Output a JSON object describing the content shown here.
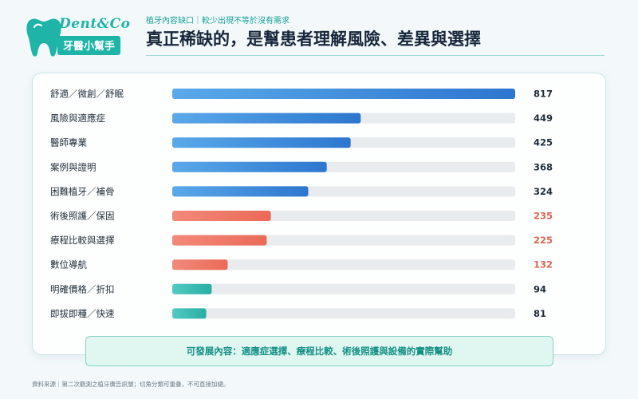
{
  "logo": {
    "brand": "Dent&Co",
    "subtitle": "牙醫小幫手"
  },
  "header": {
    "eyebrow": "植牙內容缺口｜較少出現不等於沒有需求",
    "title": "真正稀缺的，是幫患者理解風險、差異與選擇"
  },
  "chart_data": {
    "type": "bar",
    "orientation": "horizontal",
    "title": "",
    "xlabel": "",
    "ylabel": "",
    "xlim": [
      0,
      817
    ],
    "grid": false,
    "legend": "none",
    "categories": [
      "舒適／微創／舒眠",
      "風險與適應症",
      "醫師專業",
      "案例與證明",
      "困難植牙／補骨",
      "術後照護／保固",
      "療程比較與選擇",
      "數位導航",
      "明確價格／折扣",
      "即拔即種／快速"
    ],
    "values": [
      817,
      449,
      425,
      368,
      324,
      235,
      225,
      132,
      94,
      81
    ],
    "value_labels": [
      "817",
      "449",
      "425",
      "368",
      "324",
      "235",
      "225",
      "132",
      "94",
      "81"
    ],
    "bar_colors": [
      "#3a84d6",
      "#3a84d6",
      "#3a84d6",
      "#3a84d6",
      "#3a84d6",
      "#ee7564",
      "#ee7564",
      "#ee7564",
      "#32b9b0",
      "#32b9b0"
    ],
    "value_label_colors": [
      "#1f2d3a",
      "#1f2d3a",
      "#1f2d3a",
      "#1f2d3a",
      "#1f2d3a",
      "#e06551",
      "#e06551",
      "#e06551",
      "#1f2d3a",
      "#1f2d3a"
    ],
    "track_color": "#e8ecef"
  },
  "note": "可發展內容：適應症選擇、療程比較、術後照護與設備的實際幫助",
  "footer": "資料來源｜第二次觀測之植牙廣告訊號；切角分類可重疊，不可直接加總。"
}
